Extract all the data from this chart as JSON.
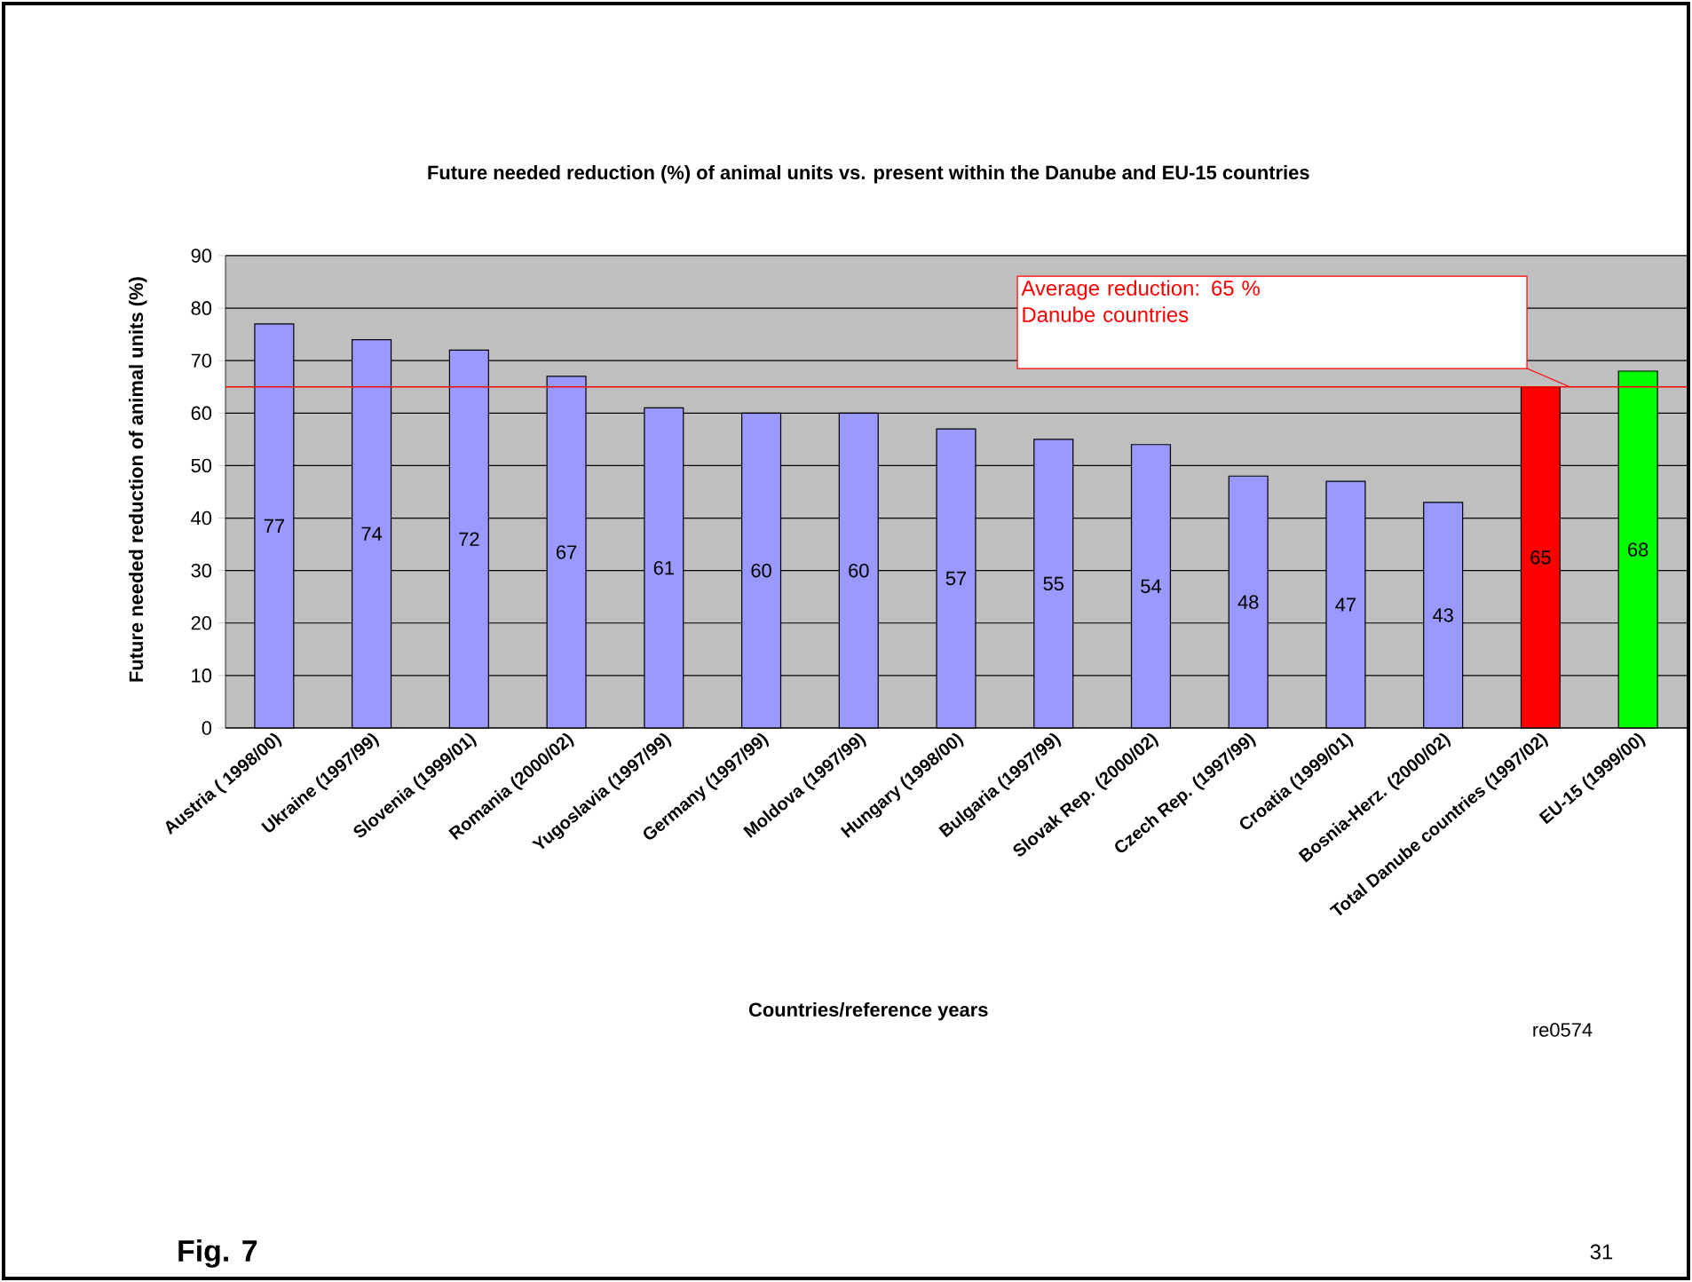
{
  "chart_data": {
    "type": "bar",
    "title": "Future needed reduction (%) of animal units vs. present within the Danube and EU-15 countries",
    "xlabel": "Countries/reference years",
    "ylabel": "Future needed reduction of animal units (%)",
    "categories": [
      "Austria ( 1998/00)",
      "Ukraine (1997/99)",
      "Slovenia (1999/01)",
      "Romania (2000/02)",
      "Yugoslavia (1997/99)",
      "Germany (1997/99)",
      "Moldova (1997/99)",
      "Hungary (1998/00)",
      "Bulgaria (1997/99)",
      "Slovak Rep. (2000/02)",
      "Czech Rep. (1997/99)",
      "Croatia (1999/01)",
      "Bosnia-Herz. (2000/02)",
      "Total Danube countries (1997/02)",
      "EU-15 (1999/00)"
    ],
    "values": [
      77,
      74,
      72,
      67,
      61,
      60,
      60,
      57,
      55,
      54,
      48,
      47,
      43,
      65,
      68
    ],
    "colors": [
      "#9999ff",
      "#9999ff",
      "#9999ff",
      "#9999ff",
      "#9999ff",
      "#9999ff",
      "#9999ff",
      "#9999ff",
      "#9999ff",
      "#9999ff",
      "#9999ff",
      "#9999ff",
      "#9999ff",
      "#ff0000",
      "#00ff00"
    ],
    "ylim": [
      0,
      90
    ],
    "yticks": [
      0,
      10,
      20,
      30,
      40,
      50,
      60,
      70,
      80,
      90
    ],
    "grid": "y",
    "data_labels": true,
    "ref_lines": [
      {
        "axis": "y",
        "value": 65,
        "label": "Average reduction: 65 % Danube countries",
        "color": "#ff0000"
      }
    ],
    "annotations": [
      "re0574",
      "Fig. 7",
      "31"
    ]
  }
}
